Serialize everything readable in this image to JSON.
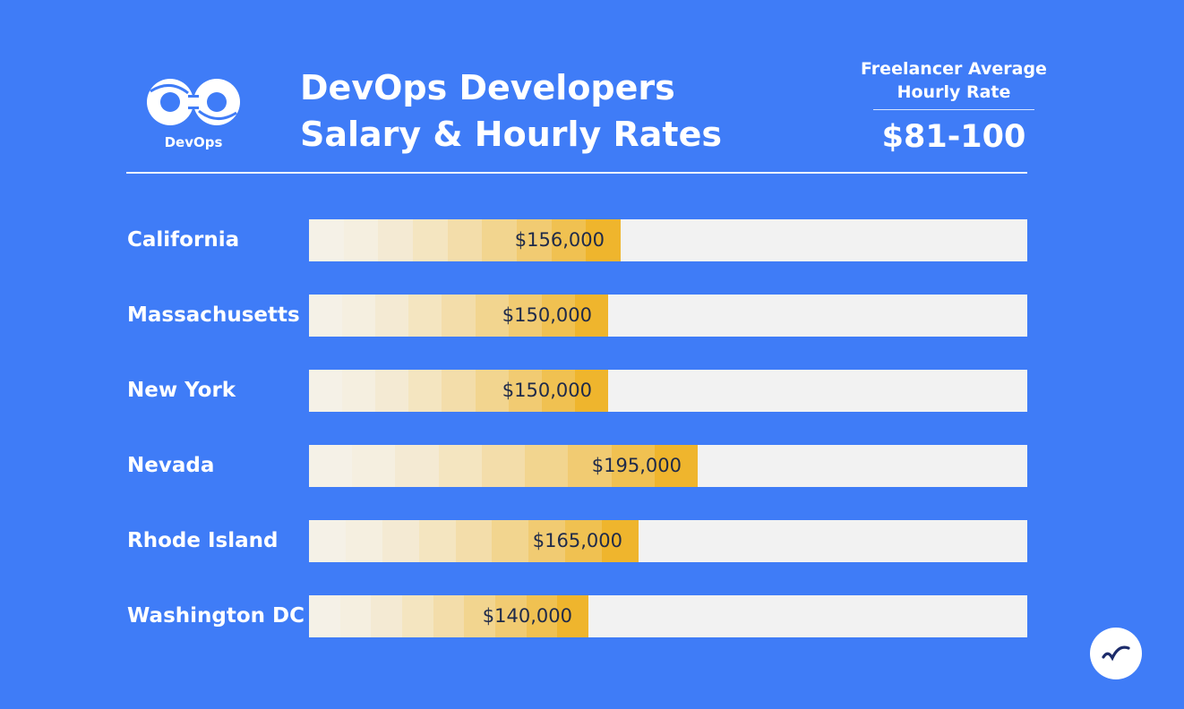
{
  "header": {
    "logo_label": "DevOps",
    "title_lines": [
      "DevOps Developers",
      "Salary & Hourly Rates"
    ],
    "rate_label_lines": [
      "Freelancer Average",
      "Hourly Rate"
    ],
    "rate_value": "$81-100"
  },
  "colors": {
    "background": "#3f7cf7",
    "track": "#f2f2f2",
    "gradient_start": "#f5f1e7",
    "gradient_end": "#efb52d",
    "value_text": "#1e2a4a",
    "badge_icon": "#1d2c6b"
  },
  "icons": {
    "logo": "devops-infinity-icon",
    "brand": "brand-swoosh-icon"
  },
  "chart_data": {
    "type": "bar",
    "orientation": "horizontal",
    "title": "DevOps Developers Salary & Hourly Rates",
    "categories": [
      "California",
      "Massachusetts",
      "New York",
      "Nevada",
      "Rhode Island",
      "Washington DC"
    ],
    "values": [
      156000,
      150000,
      150000,
      195000,
      165000,
      140000
    ],
    "value_labels": [
      "$156,000",
      "$150,000",
      "$150,000",
      "$195,000",
      "$165,000",
      "$140,000"
    ],
    "xlim": [
      0,
      360000
    ],
    "xlabel": "",
    "ylabel": "",
    "grid": false,
    "legend": "none"
  }
}
